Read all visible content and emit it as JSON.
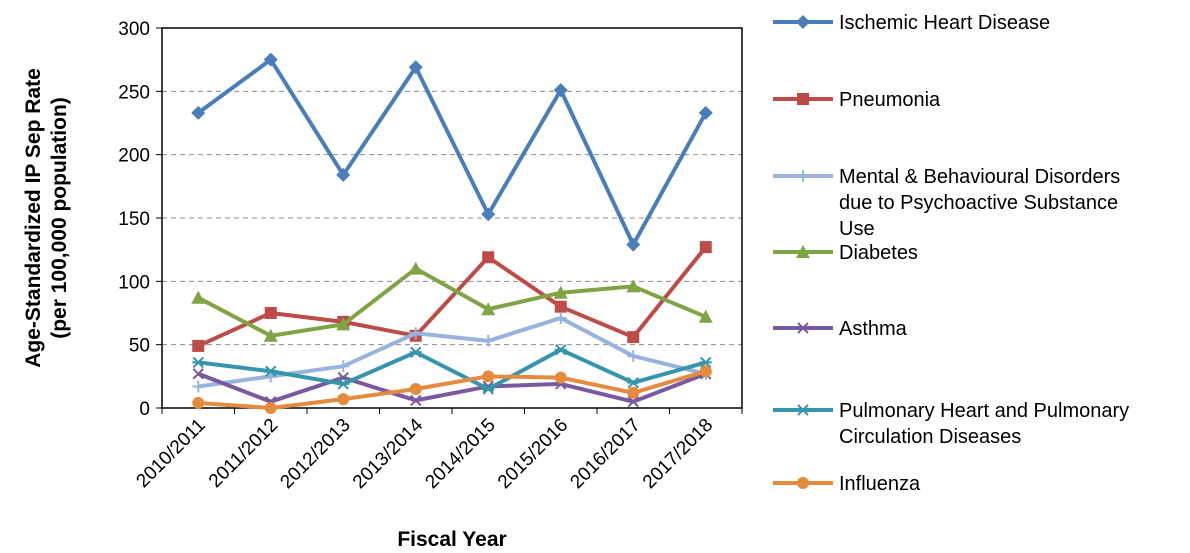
{
  "chart_data": {
    "type": "line",
    "title": "",
    "xlabel": "Fiscal Year",
    "ylabel_lines": [
      "Age-Standardized IP Sep Rate",
      "(per 100,000 population)"
    ],
    "categories": [
      "2010/2011",
      "2011/2012",
      "2012/2013",
      "2013/2014",
      "2014/2015",
      "2015/2016",
      "2016/2017",
      "2017/2018"
    ],
    "ylim": [
      0,
      300
    ],
    "yticks": [
      0,
      50,
      100,
      150,
      200,
      250,
      300
    ],
    "grid": "horizontal dashed",
    "legend_position": "right",
    "series": [
      {
        "name": "Ischemic Heart Disease",
        "name_lines": [
          "Ischemic Heart Disease"
        ],
        "color": "#4a7ebb",
        "marker": "diamond",
        "values": [
          233,
          275,
          184,
          269,
          153,
          251,
          129,
          233
        ]
      },
      {
        "name": "Pneumonia",
        "name_lines": [
          "Pneumonia"
        ],
        "color": "#be4b48",
        "marker": "square",
        "values": [
          49,
          75,
          68,
          57,
          119,
          80,
          56,
          127
        ]
      },
      {
        "name": "Mental & Behavioural Disorders due to Psychoactive Substance Use",
        "name_lines": [
          "Mental & Behavioural Disorders",
          "due to Psychoactive Substance",
          "Use"
        ],
        "color": "#98b3dc",
        "marker": "plus",
        "values": [
          17,
          25,
          33,
          59,
          53,
          71,
          41,
          27
        ]
      },
      {
        "name": "Diabetes",
        "name_lines": [
          "Diabetes"
        ],
        "color": "#7fa443",
        "marker": "triangle",
        "values": [
          87,
          57,
          66,
          110,
          78,
          91,
          96,
          72
        ]
      },
      {
        "name": "Asthma",
        "name_lines": [
          "Asthma"
        ],
        "color": "#7a5a9f",
        "marker": "x",
        "values": [
          27,
          5,
          24,
          6,
          17,
          19,
          5,
          27
        ]
      },
      {
        "name": "Pulmonary Heart and Pulmonary Circulation Diseases",
        "name_lines": [
          "Pulmonary Heart and Pulmonary",
          "Circulation Diseases"
        ],
        "color": "#3495ad",
        "marker": "star",
        "values": [
          36,
          29,
          19,
          44,
          15,
          46,
          20,
          36
        ]
      },
      {
        "name": "Influenza",
        "name_lines": [
          "Influenza"
        ],
        "color": "#e68a3e",
        "marker": "circle",
        "values": [
          4,
          0,
          7,
          15,
          25,
          24,
          12,
          29
        ]
      }
    ]
  }
}
